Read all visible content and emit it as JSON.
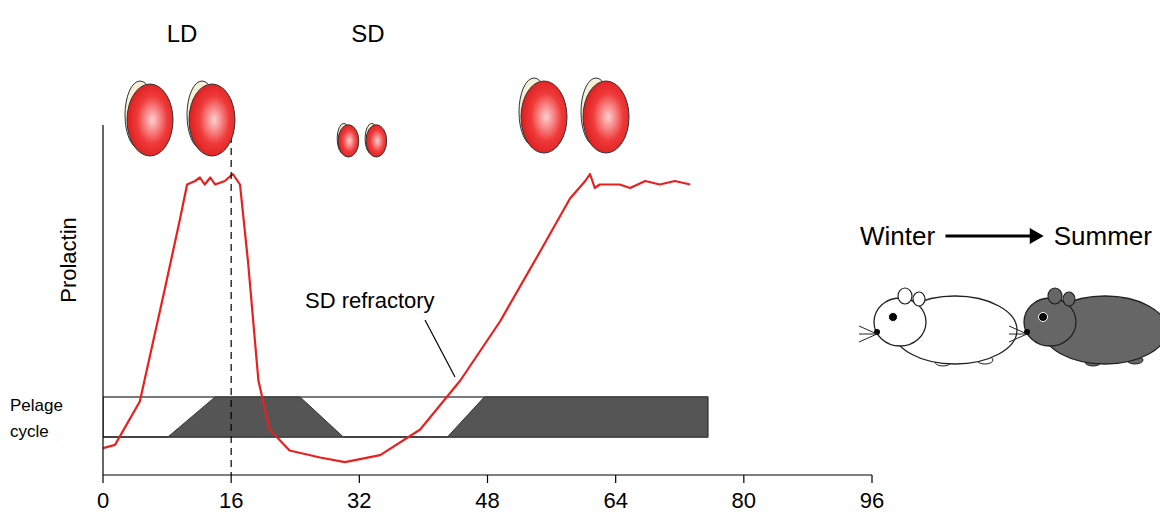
{
  "chart_data": {
    "type": "line",
    "y_label": "Prolactin",
    "color": "#e8201f",
    "x": [
      0,
      1.5,
      4.6,
      7.7,
      9.6,
      10.5,
      11.5,
      12.1,
      12.7,
      13.4,
      14,
      15.2,
      16.2,
      17.1,
      18.1,
      19.4,
      20.8,
      23.3,
      27.1,
      30.2,
      34.6,
      39.6,
      44.6,
      49.6,
      54.6,
      58.3,
      60.2,
      60.8,
      61.4,
      62,
      64.5,
      65.8,
      67.7,
      69.5,
      71.4,
      73.3
    ],
    "values": [
      7.7,
      8.6,
      21,
      53,
      73,
      83,
      84,
      85,
      83,
      85,
      83,
      84,
      86,
      83,
      61,
      27,
      13,
      7,
      5,
      3.7,
      5.7,
      13,
      27,
      44,
      64,
      79,
      84,
      86,
      82,
      83,
      83,
      82,
      84,
      83,
      84,
      83
    ],
    "xlim": [
      0,
      96
    ],
    "xticks": [
      0,
      16,
      32,
      48,
      64,
      80,
      96
    ],
    "ylim": [
      0,
      100
    ],
    "yticks": [],
    "tick_labels": "x",
    "dashed_x": 16,
    "photoperiod_labels": [
      "LD",
      "SD"
    ],
    "annotation": "SD refractory",
    "pelage": {
      "label": "Pelage cycle",
      "x": [
        0,
        8.1,
        14,
        24.6,
        30,
        43,
        47.6,
        75.5
      ],
      "values": [
        0,
        0,
        1,
        1,
        0,
        0,
        1,
        1
      ]
    },
    "transition": {
      "from": "Winter",
      "to": "Summer"
    }
  }
}
